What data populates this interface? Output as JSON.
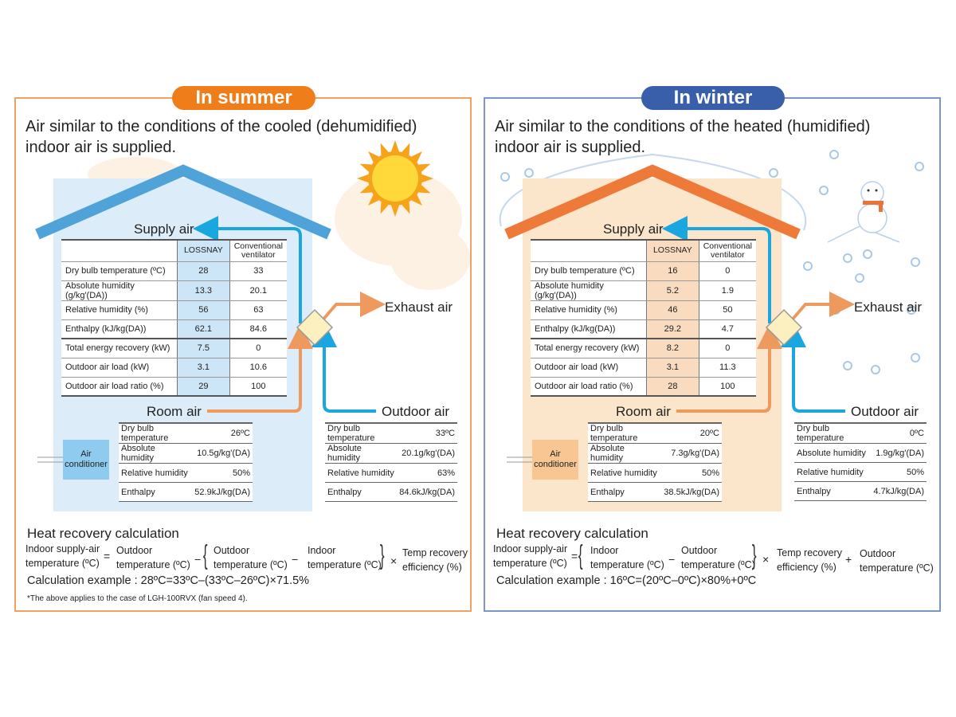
{
  "colors": {
    "summer_accent": "#ef7d1a",
    "winter_accent": "#3a5faa",
    "supply_air": "#1aa7e0",
    "room_air": "#ee9a5e"
  },
  "panels": [
    {
      "season": "summer",
      "badge": "In summer",
      "subtitle_1": "Air similar to the conditions of the cooled (dehumidified)",
      "subtitle_2": "indoor air is supplied.",
      "labels": {
        "supply": "Supply air",
        "exhaust": "Exhaust air",
        "room": "Room air",
        "outdoor": "Outdoor air",
        "ac_1": "Air",
        "ac_2": "conditioner"
      },
      "table": {
        "headers": [
          "",
          "LOSSNAY",
          "Conventional ventilator"
        ],
        "rows": [
          [
            "Dry bulb temperature (ºC)",
            "28",
            "33"
          ],
          [
            "Absolute humidity (g/kg'(DA))",
            "13.3",
            "20.1"
          ],
          [
            "Relative humidity (%)",
            "56",
            "63"
          ],
          [
            "Enthalpy (kJ/kg(DA))",
            "62.1",
            "84.6"
          ],
          [
            "Total energy recovery (kW)",
            "7.5",
            "0"
          ],
          [
            "Outdoor air load (kW)",
            "3.1",
            "10.6"
          ],
          [
            "Outdoor air load ratio (%)",
            "29",
            "100"
          ]
        ]
      },
      "room_conditions": [
        [
          "Dry bulb temperature",
          "26ºC"
        ],
        [
          "Absolute humidity",
          "10.5g/kg'(DA)"
        ],
        [
          "Relative humidity",
          "50%"
        ],
        [
          "Enthalpy",
          "52.9kJ/kg(DA)"
        ]
      ],
      "outdoor_conditions": [
        [
          "Dry bulb temperature",
          "33ºC"
        ],
        [
          "Absolute humidity",
          "20.1g/kg'(DA)"
        ],
        [
          "Relative humidity",
          "63%"
        ],
        [
          "Enthalpy",
          "84.6kJ/kg(DA)"
        ]
      ],
      "calc_title": "Heat recovery calculation",
      "formula": {
        "lhs_1": "Indoor supply-air",
        "lhs_2": "temperature (ºC)",
        "t1_1": "Outdoor",
        "t1_2": "temperature (ºC)",
        "t2_1": "Outdoor",
        "t2_2": "temperature (ºC)",
        "t3_1": "Indoor",
        "t3_2": "temperature (ºC)",
        "eff_1": "Temp recovery",
        "eff_2": "efficiency (%)",
        "eq": "=",
        "minus": "−",
        "times": "×"
      },
      "example": "Calculation example : 28ºC=33ºC–(33ºC–26ºC)×71.5%",
      "note": "*The above applies to the case of LGH-100RVX (fan speed 4)."
    },
    {
      "season": "winter",
      "badge": "In winter",
      "subtitle_1": "Air similar to the conditions of the heated (humidified)",
      "subtitle_2": "indoor air is supplied.",
      "labels": {
        "supply": "Supply air",
        "exhaust": "Exhaust air",
        "room": "Room air",
        "outdoor": "Outdoor air",
        "ac_1": "Air",
        "ac_2": "conditioner"
      },
      "table": {
        "headers": [
          "",
          "LOSSNAY",
          "Conventional ventilator"
        ],
        "rows": [
          [
            "Dry bulb temperature (ºC)",
            "16",
            "0"
          ],
          [
            "Absolute humidity (g/kg'(DA))",
            "5.2",
            "1.9"
          ],
          [
            "Relative humidity (%)",
            "46",
            "50"
          ],
          [
            "Enthalpy (kJ/kg(DA))",
            "29.2",
            "4.7"
          ],
          [
            "Total energy recovery (kW)",
            "8.2",
            "0"
          ],
          [
            "Outdoor air load (kW)",
            "3.1",
            "11.3"
          ],
          [
            "Outdoor air load ratio (%)",
            "28",
            "100"
          ]
        ]
      },
      "room_conditions": [
        [
          "Dry bulb temperature",
          "20ºC"
        ],
        [
          "Absolute humidity",
          "7.3g/kg'(DA)"
        ],
        [
          "Relative humidity",
          "50%"
        ],
        [
          "Enthalpy",
          "38.5kJ/kg(DA)"
        ]
      ],
      "outdoor_conditions": [
        [
          "Dry bulb temperature",
          "0ºC"
        ],
        [
          "Absolute humidity",
          "1.9g/kg'(DA)"
        ],
        [
          "Relative humidity",
          "50%"
        ],
        [
          "Enthalpy",
          "4.7kJ/kg(DA)"
        ]
      ],
      "calc_title": "Heat recovery calculation",
      "formula": {
        "lhs_1": "Indoor supply-air",
        "lhs_2": "temperature (ºC)",
        "t1_1": "Indoor",
        "t1_2": "temperature (ºC)",
        "t2_1": "Outdoor",
        "t2_2": "temperature (ºC)",
        "eff_1": "Temp recovery",
        "eff_2": "efficiency (%)",
        "t3_1": "Outdoor",
        "t3_2": "temperature (ºC)",
        "eq": "=",
        "minus": "−",
        "times": "×",
        "plus": "+"
      },
      "example": "Calculation example : 16ºC=(20ºC–0ºC)×80%+0ºC"
    }
  ]
}
